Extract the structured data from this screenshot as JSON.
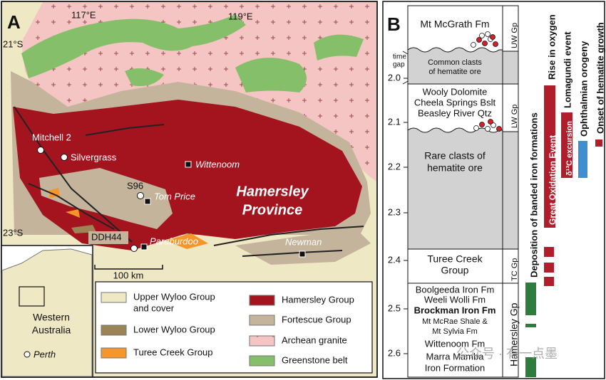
{
  "panel_a": {
    "label": "A",
    "coords": {
      "lon": [
        "117°E",
        "119°E"
      ],
      "lat": [
        "21°S",
        "23°S"
      ]
    },
    "places": [
      "Mitchell 2",
      "Silvergrass",
      "Wittenoom",
      "S96",
      "Tom Price",
      "DDH44",
      "Paraburdoo",
      "Newman"
    ],
    "province": [
      "Hamersley",
      "Province"
    ],
    "scale_bar": "100 km",
    "inset": {
      "region": [
        "Western",
        "Australia"
      ],
      "city": "Perth"
    },
    "legend": [
      {
        "label": [
          "Upper Wyloo Group",
          "and cover"
        ],
        "color": "#efe8c4"
      },
      {
        "label": [
          "Lower Wyloo Group"
        ],
        "color": "#9c8554"
      },
      {
        "label": [
          "Turee Creek Group"
        ],
        "color": "#f5952a"
      },
      {
        "label": [
          "Hamersley Group"
        ],
        "color": "#a3141f"
      },
      {
        "label": [
          "Fortescue Group"
        ],
        "color": "#c4b49c"
      },
      {
        "label": [
          "Archean granite"
        ],
        "color": "#f4c5c2"
      },
      {
        "label": [
          "Greenstone belt"
        ],
        "color": "#86bf6a"
      }
    ]
  },
  "panel_b": {
    "label": "B",
    "age_ticks": [
      "2.0",
      "2.1",
      "2.2",
      "2.3",
      "2.4",
      "2.5",
      "2.6"
    ],
    "time_gap": [
      "time",
      "gap"
    ],
    "groups": [
      "UW Gp",
      "LW Gp",
      "TC Gp",
      "Hamersley Gp"
    ],
    "units": {
      "uw": [
        "Mt McGrath Fm"
      ],
      "lw": [
        "Wooly Dolomite",
        "Cheela Springs Bslt",
        "Beasley River Qtz"
      ],
      "tc": [
        "Turee Creek",
        "Group"
      ],
      "hamersley": [
        "Boolgeeda Iron Fm",
        "Weeli Wolli Fm",
        "Brockman Iron Fm",
        "Mt McRae Shale &",
        "Mt Sylvia Fm",
        "Wittenoom Fm",
        "Marra Mamba",
        "Iron Formation"
      ]
    },
    "annotations": {
      "common": [
        "Common clasts",
        "of hematite ore"
      ],
      "rare": [
        "Rare clasts of",
        "hematite ore"
      ]
    },
    "events": [
      "Deposition of banded iron formations",
      "Rise in oxygen",
      "Great Oxidation Event",
      "Lomagundi event",
      "δ¹³C excursion",
      "Ophthalmian orogeny",
      "Onset of hematite growth"
    ]
  },
  "watermark": "公众号 · 有一点墨"
}
